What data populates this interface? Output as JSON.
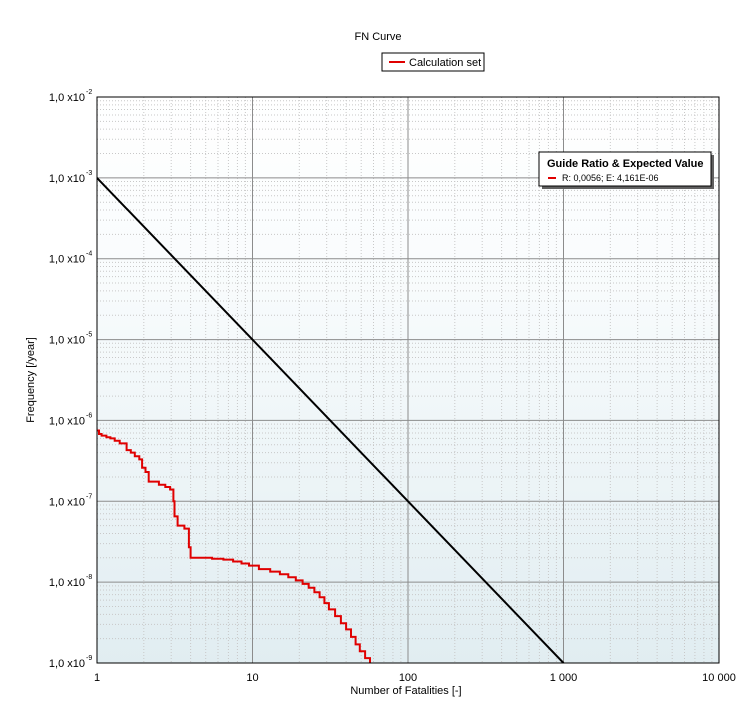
{
  "chart_data": {
    "type": "line",
    "title": "FN Curve",
    "xlabel": "Number of Fatalities [-]",
    "ylabel": "Frequency [/year]",
    "x_scale": "log",
    "y_scale": "log",
    "xlim": [
      1,
      10000
    ],
    "ylim": [
      1e-09,
      0.01
    ],
    "grid": true,
    "legend_position": "top-center",
    "x_ticks": [
      {
        "value": 1,
        "label": "1"
      },
      {
        "value": 10,
        "label": "10"
      },
      {
        "value": 100,
        "label": "100"
      },
      {
        "value": 1000,
        "label": "1 000"
      },
      {
        "value": 10000,
        "label": "10 000"
      }
    ],
    "y_ticks": [
      {
        "value": 1e-09,
        "base": "1,0 x10",
        "exp": "-9"
      },
      {
        "value": 1e-08,
        "base": "1,0 x10",
        "exp": "-8"
      },
      {
        "value": 1e-07,
        "base": "1,0 x10",
        "exp": "-7"
      },
      {
        "value": 1e-06,
        "base": "1,0 x10",
        "exp": "-6"
      },
      {
        "value": 1e-05,
        "base": "1,0 x10",
        "exp": "-5"
      },
      {
        "value": 0.0001,
        "base": "1,0 x10",
        "exp": "-4"
      },
      {
        "value": 0.001,
        "base": "1,0 x10",
        "exp": "-3"
      },
      {
        "value": 0.01,
        "base": "1,0 x10",
        "exp": "-2"
      }
    ],
    "series": [
      {
        "name": "Calculation set",
        "color": "#e00000",
        "style": "step",
        "points": [
          [
            1.0,
            7.5e-07
          ],
          [
            1.03,
            6.8e-07
          ],
          [
            1.07,
            6.5e-07
          ],
          [
            1.15,
            6.2e-07
          ],
          [
            1.22,
            6e-07
          ],
          [
            1.3,
            5.6e-07
          ],
          [
            1.4,
            5.2e-07
          ],
          [
            1.55,
            4.3e-07
          ],
          [
            1.65,
            4e-07
          ],
          [
            1.75,
            3.6e-07
          ],
          [
            1.87,
            3.3e-07
          ],
          [
            1.95,
            2.6e-07
          ],
          [
            2.05,
            2.3e-07
          ],
          [
            2.15,
            1.75e-07
          ],
          [
            2.5,
            1.6e-07
          ],
          [
            2.75,
            1.5e-07
          ],
          [
            2.95,
            1.4e-07
          ],
          [
            3.1,
            1e-07
          ],
          [
            3.15,
            6.5e-08
          ],
          [
            3.3,
            5e-08
          ],
          [
            3.65,
            4.6e-08
          ],
          [
            3.9,
            2.7e-08
          ],
          [
            4.0,
            2e-08
          ],
          [
            5.5,
            1.95e-08
          ],
          [
            6.5,
            1.9e-08
          ],
          [
            7.5,
            1.8e-08
          ],
          [
            8.5,
            1.7e-08
          ],
          [
            9.5,
            1.6e-08
          ],
          [
            11,
            1.45e-08
          ],
          [
            13,
            1.35e-08
          ],
          [
            15,
            1.25e-08
          ],
          [
            17,
            1.15e-08
          ],
          [
            19,
            1.05e-08
          ],
          [
            21,
            9.5e-09
          ],
          [
            23,
            8.5e-09
          ],
          [
            25,
            7.5e-09
          ],
          [
            27,
            6.5e-09
          ],
          [
            29,
            5.5e-09
          ],
          [
            31,
            4.6e-09
          ],
          [
            34,
            3.8e-09
          ],
          [
            37,
            3.1e-09
          ],
          [
            40,
            2.6e-09
          ],
          [
            43,
            2.1e-09
          ],
          [
            46,
            1.7e-09
          ],
          [
            49,
            1.4e-09
          ],
          [
            53,
            1.15e-09
          ],
          [
            57,
            1e-09
          ]
        ]
      },
      {
        "name": "",
        "color": "#000000",
        "style": "line",
        "points": [
          [
            1,
            0.001
          ],
          [
            1000,
            1e-09
          ]
        ]
      }
    ]
  },
  "info_box": {
    "title": "Guide Ratio & Expected Value",
    "text": "R: 0,0056; E: 4,161E-06",
    "marker_color": "#e00000"
  }
}
